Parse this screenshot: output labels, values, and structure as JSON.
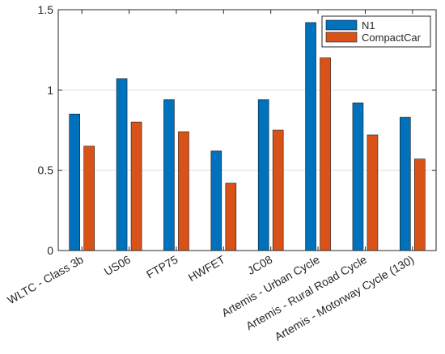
{
  "chart_data": {
    "type": "bar",
    "title": "",
    "xlabel": "",
    "ylabel": "",
    "categories": [
      "WLTC - Class 3b",
      "US06",
      "FTP75",
      "HWFET",
      "JC08",
      "Artemis - Urban Cycle",
      "Artemis - Rural Road Cycle",
      "Artemis - Motorway Cycle (130)"
    ],
    "series": [
      {
        "name": "N1",
        "color": "#0072bd",
        "values": [
          0.85,
          1.07,
          0.94,
          0.62,
          0.94,
          1.42,
          0.92,
          0.83
        ]
      },
      {
        "name": "CompactCar",
        "color": "#d95319",
        "values": [
          0.65,
          0.8,
          0.74,
          0.42,
          0.75,
          1.2,
          0.72,
          0.57
        ]
      }
    ],
    "ylim": [
      0,
      1.5
    ],
    "yticks": [
      0,
      0.5,
      1,
      1.5
    ],
    "ytick_labels": [
      "0",
      "0.5",
      "1",
      "1.5"
    ],
    "grid": true,
    "legend_position": "top-right"
  }
}
